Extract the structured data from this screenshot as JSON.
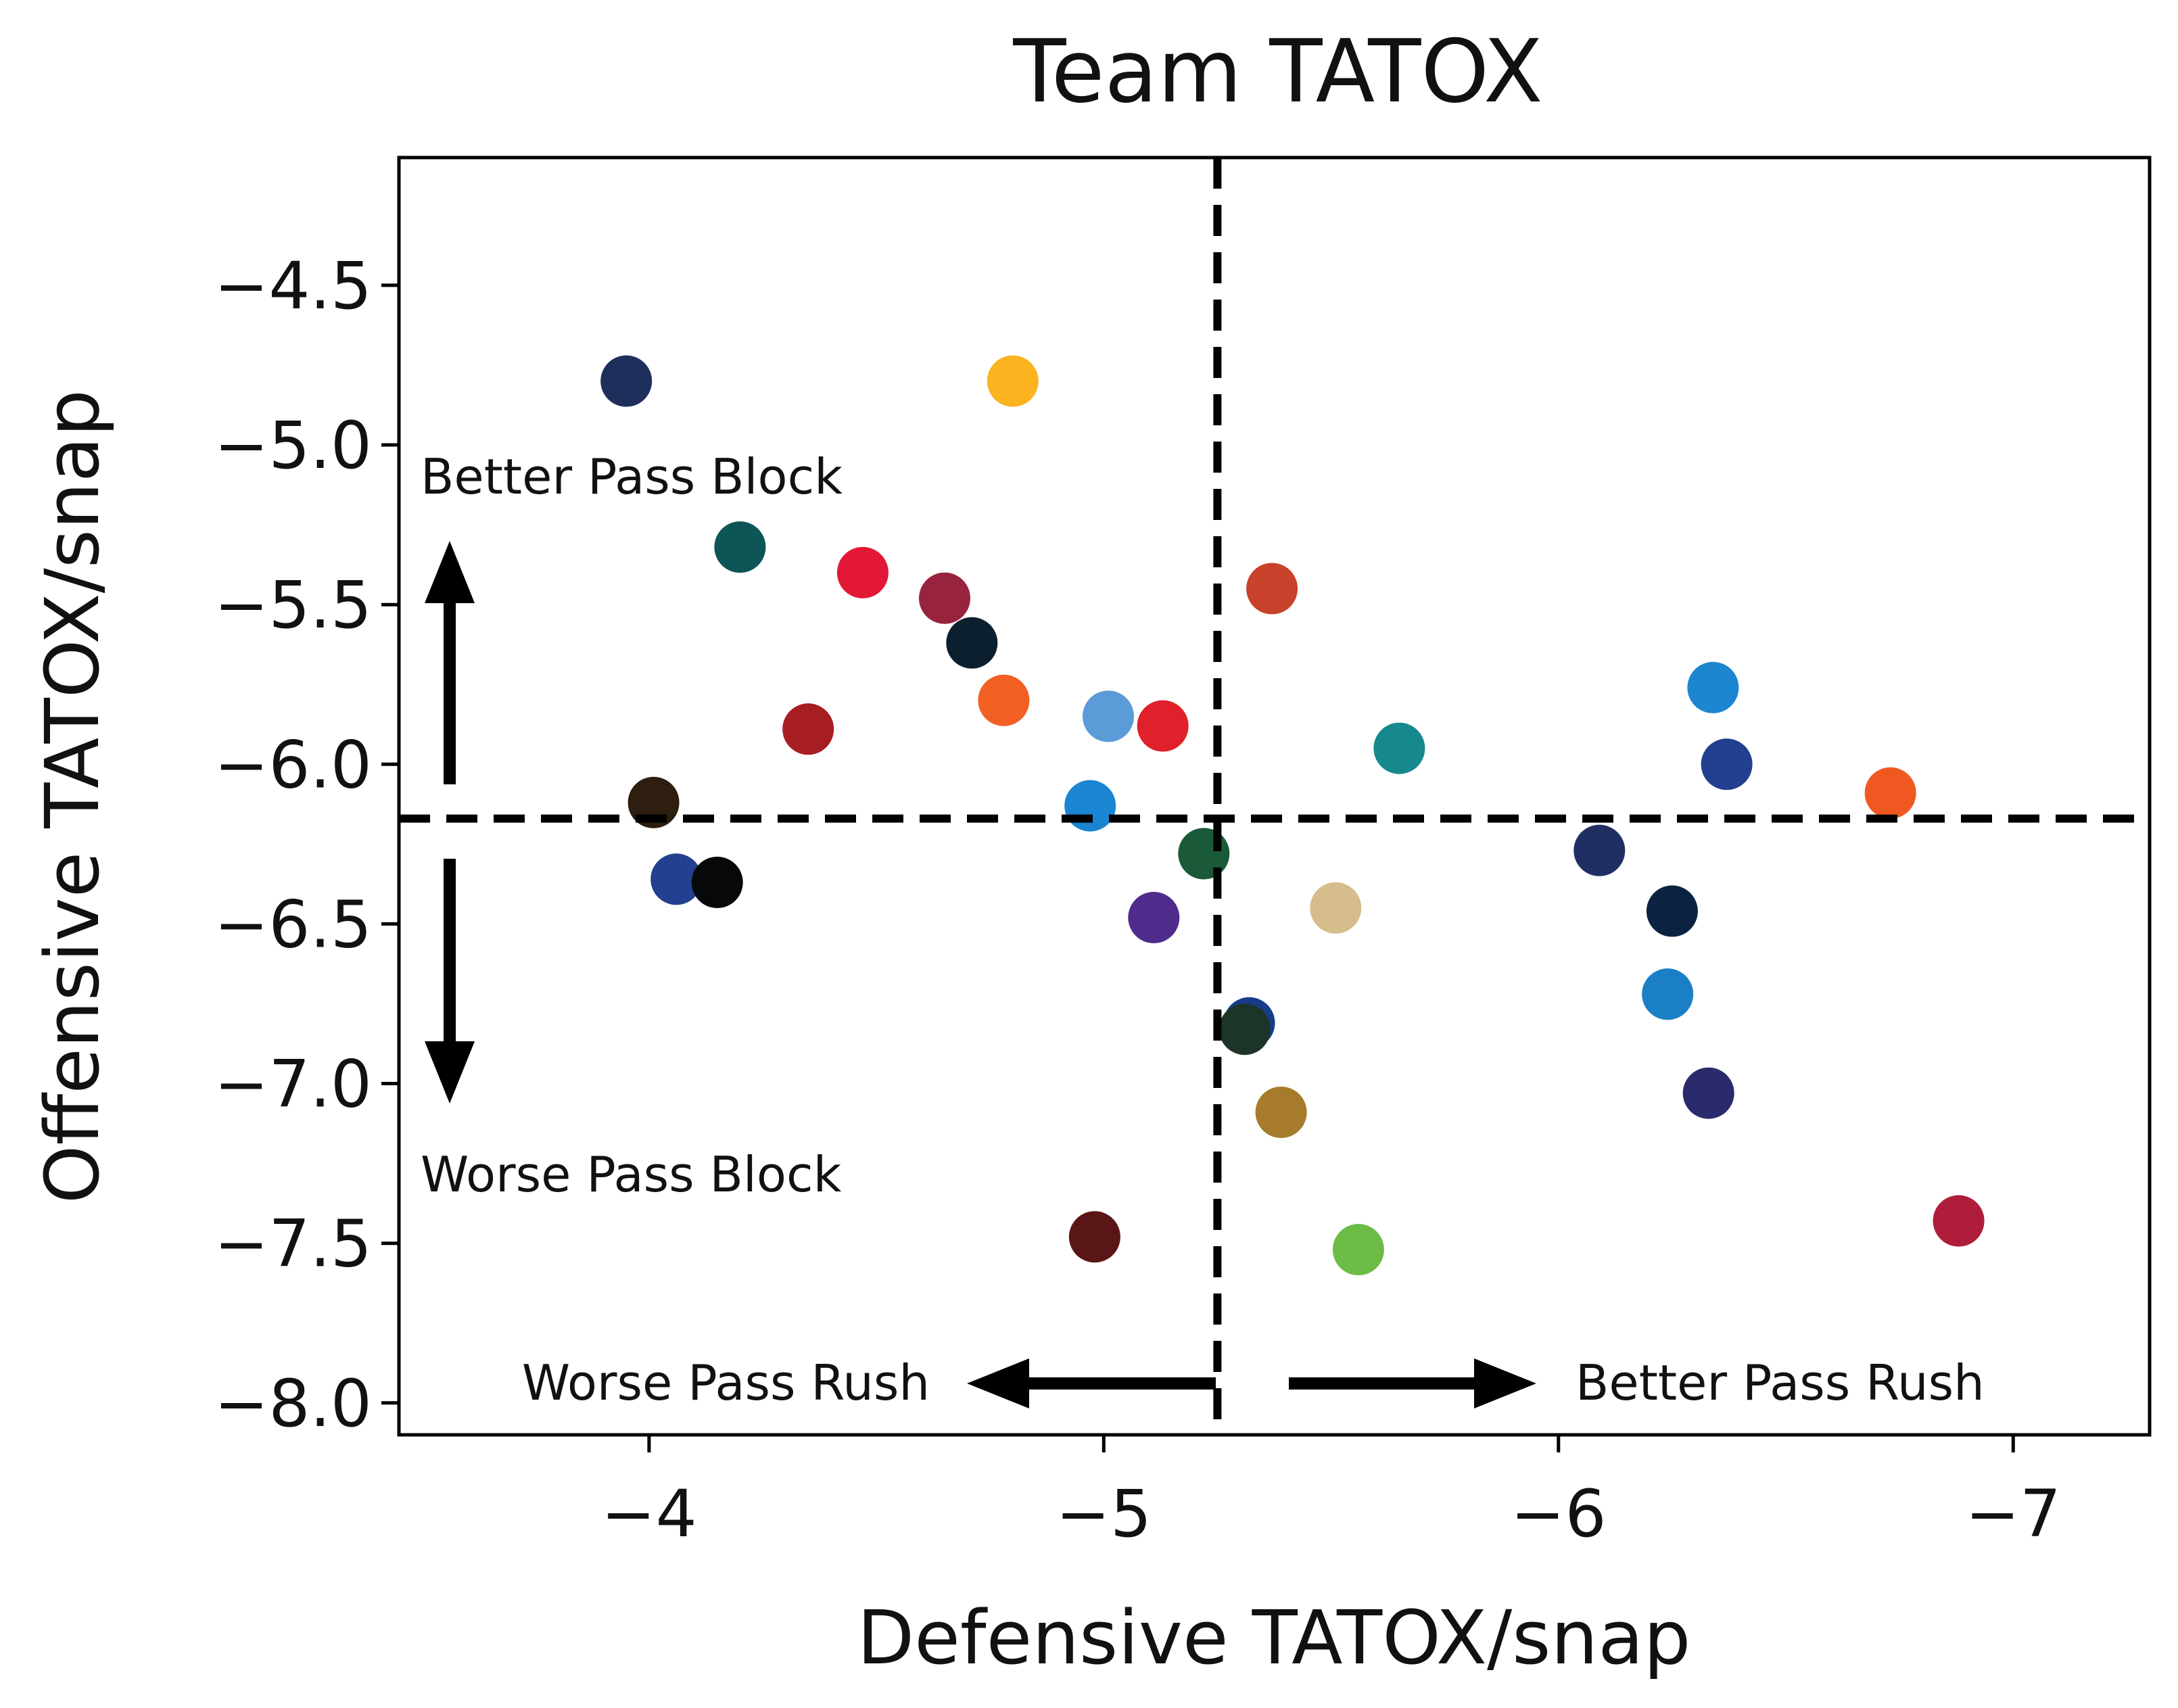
{
  "chart_data": {
    "type": "scatter",
    "title": "Team TATOX",
    "xlabel": "Defensive TATOX/snap",
    "ylabel": "Offensive TATOX/snap",
    "xlim": [
      -3.45,
      -7.3
    ],
    "ylim": [
      -8.1,
      -4.1
    ],
    "x_ticks": [
      -4,
      -5,
      -6,
      -7
    ],
    "x_tick_labels": [
      "−4",
      "−5",
      "−6",
      "−7"
    ],
    "y_ticks": [
      -4.5,
      -5.0,
      -5.5,
      -6.0,
      -6.5,
      -7.0,
      -7.5,
      -8.0
    ],
    "y_tick_labels": [
      "−4.5",
      "−5.0",
      "−5.5",
      "−6.0",
      "−6.5",
      "−7.0",
      "−7.5",
      "−8.0"
    ],
    "grid": false,
    "reference_lines": {
      "x": -5.25,
      "y": -6.17
    },
    "annotations": {
      "better_pass_block": "Better Pass Block",
      "worse_pass_block": "Worse Pass Block",
      "worse_pass_rush": "Worse Pass Rush",
      "better_pass_rush": "Better Pass Rush"
    },
    "points": [
      {
        "x": -3.95,
        "y": -4.8,
        "color": "#1f2f5c"
      },
      {
        "x": -4.8,
        "y": -4.8,
        "color": "#fbb31f"
      },
      {
        "x": -4.2,
        "y": -5.32,
        "color": "#0d5556"
      },
      {
        "x": -4.47,
        "y": -5.4,
        "color": "#e31837"
      },
      {
        "x": -4.65,
        "y": -5.48,
        "color": "#97233f"
      },
      {
        "x": -4.71,
        "y": -5.62,
        "color": "#0b1f2f"
      },
      {
        "x": -4.35,
        "y": -5.89,
        "color": "#a71e22"
      },
      {
        "x": -4.78,
        "y": -5.8,
        "color": "#f26024"
      },
      {
        "x": -5.01,
        "y": -5.85,
        "color": "#5a9bd8"
      },
      {
        "x": -5.13,
        "y": -5.88,
        "color": "#e0202a"
      },
      {
        "x": -4.01,
        "y": -6.12,
        "color": "#2d1e0f"
      },
      {
        "x": -4.97,
        "y": -6.13,
        "color": "#1a85d3"
      },
      {
        "x": -4.06,
        "y": -6.36,
        "color": "#22408f"
      },
      {
        "x": -4.15,
        "y": -6.37,
        "color": "#06080a"
      },
      {
        "x": -5.22,
        "y": -6.28,
        "color": "#1a5a38"
      },
      {
        "x": -5.11,
        "y": -6.48,
        "color": "#4f2c8c"
      },
      {
        "x": -5.37,
        "y": -5.45,
        "color": "#c8412a"
      },
      {
        "x": -5.65,
        "y": -5.95,
        "color": "#16898e"
      },
      {
        "x": -5.51,
        "y": -6.45,
        "color": "#d6bd8c"
      },
      {
        "x": -5.32,
        "y": -6.81,
        "color": "#163d8a"
      },
      {
        "x": -5.31,
        "y": -6.83,
        "color": "#1d3428"
      },
      {
        "x": -5.39,
        "y": -7.09,
        "color": "#a67c2c"
      },
      {
        "x": -4.98,
        "y": -7.48,
        "color": "#5a1616"
      },
      {
        "x": -5.56,
        "y": -7.52,
        "color": "#6cbc45"
      },
      {
        "x": -6.09,
        "y": -6.27,
        "color": "#202f63"
      },
      {
        "x": -6.25,
        "y": -6.46,
        "color": "#0b2340"
      },
      {
        "x": -6.34,
        "y": -5.76,
        "color": "#1c86d0"
      },
      {
        "x": -6.37,
        "y": -6.0,
        "color": "#22408f"
      },
      {
        "x": -6.73,
        "y": -6.09,
        "color": "#f05822"
      },
      {
        "x": -6.24,
        "y": -6.72,
        "color": "#1a7fc4"
      },
      {
        "x": -6.33,
        "y": -7.03,
        "color": "#2b2a6c"
      },
      {
        "x": -6.88,
        "y": -7.43,
        "color": "#b01d3a"
      }
    ]
  }
}
